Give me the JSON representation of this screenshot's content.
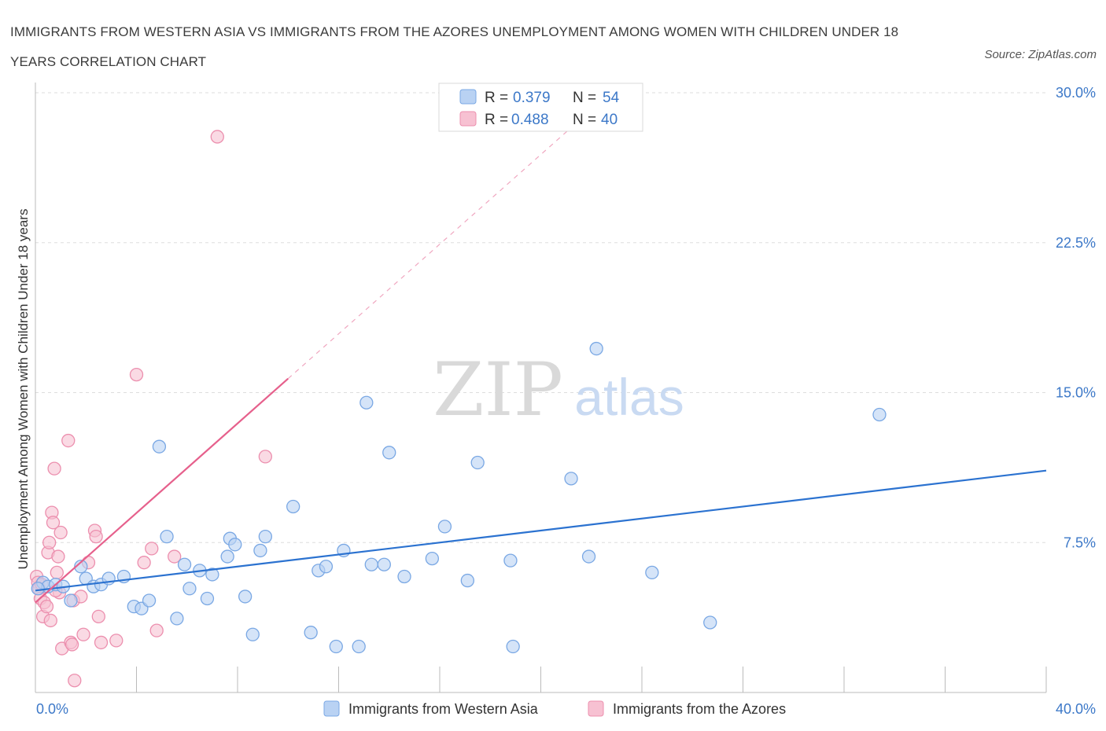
{
  "title": "IMMIGRANTS FROM WESTERN ASIA VS IMMIGRANTS FROM THE AZORES UNEMPLOYMENT AMONG WOMEN WITH CHILDREN UNDER 18 YEARS CORRELATION CHART",
  "source": "Source: ZipAtlas.com",
  "watermark": {
    "zip": "ZIP",
    "atlas": "atlas"
  },
  "legend_top": [
    {
      "r_label": "R =",
      "r_value": "0.379",
      "n_label": "N =",
      "n_value": "54"
    },
    {
      "r_label": "R =",
      "r_value": "0.488",
      "n_label": "N =",
      "n_value": "40"
    }
  ],
  "legend_bottom": [
    "Immigrants from Western Asia",
    "Immigrants from the Azores"
  ],
  "colors": {
    "blue_fill": "#b9d2f3",
    "blue_stroke": "#7aa8e4",
    "blue_line": "#2b72d0",
    "pink_fill": "#f7c1d2",
    "pink_stroke": "#ec8fae",
    "pink_line": "#e6608c",
    "tick_text": "#3c78c8",
    "grid": "#dddddd"
  },
  "chart_data": {
    "type": "scatter",
    "title": "IMMIGRANTS FROM WESTERN ASIA VS IMMIGRANTS FROM THE AZORES UNEMPLOYMENT AMONG WOMEN WITH CHILDREN UNDER 18 YEARS CORRELATION CHART",
    "xlabel": "",
    "ylabel": "Unemployment Among Women with Children Under 18 years",
    "xlim": [
      0,
      40
    ],
    "ylim": [
      0,
      30
    ],
    "x_tick_labels": [
      "0.0%",
      "40.0%"
    ],
    "y_ticks": [
      7.5,
      15.0,
      22.5,
      30.0
    ],
    "y_tick_labels": [
      "7.5%",
      "15.0%",
      "22.5%",
      "30.0%"
    ],
    "grid": true,
    "legend_position": "top-center",
    "series": [
      {
        "name": "Immigrants from Western Asia",
        "r": 0.379,
        "n": 54,
        "trend": {
          "x": [
            0,
            40
          ],
          "y": [
            5.1,
            11.1
          ]
        },
        "points": [
          [
            0.3,
            5.5
          ],
          [
            0.5,
            5.3
          ],
          [
            0.8,
            5.4
          ],
          [
            1.1,
            5.3
          ],
          [
            1.4,
            4.6
          ],
          [
            1.8,
            6.3
          ],
          [
            2.0,
            5.7
          ],
          [
            2.3,
            5.3
          ],
          [
            2.6,
            5.4
          ],
          [
            2.9,
            5.7
          ],
          [
            3.5,
            5.8
          ],
          [
            3.9,
            4.3
          ],
          [
            4.2,
            4.2
          ],
          [
            4.5,
            4.6
          ],
          [
            4.9,
            12.3
          ],
          [
            5.2,
            7.8
          ],
          [
            5.6,
            3.7
          ],
          [
            5.9,
            6.4
          ],
          [
            6.1,
            5.2
          ],
          [
            6.5,
            6.1
          ],
          [
            6.8,
            4.7
          ],
          [
            7.0,
            5.9
          ],
          [
            7.6,
            6.8
          ],
          [
            7.7,
            7.7
          ],
          [
            7.9,
            7.4
          ],
          [
            8.3,
            4.8
          ],
          [
            8.6,
            2.9
          ],
          [
            8.9,
            7.1
          ],
          [
            9.1,
            7.8
          ],
          [
            10.2,
            9.3
          ],
          [
            10.9,
            3.0
          ],
          [
            11.2,
            6.1
          ],
          [
            11.5,
            6.3
          ],
          [
            11.9,
            2.3
          ],
          [
            12.2,
            7.1
          ],
          [
            12.8,
            2.3
          ],
          [
            13.1,
            14.5
          ],
          [
            13.3,
            6.4
          ],
          [
            13.8,
            6.4
          ],
          [
            14.0,
            12.0
          ],
          [
            14.6,
            5.8
          ],
          [
            15.7,
            6.7
          ],
          [
            16.2,
            8.3
          ],
          [
            17.1,
            5.6
          ],
          [
            17.5,
            11.5
          ],
          [
            18.8,
            6.6
          ],
          [
            18.9,
            2.3
          ],
          [
            21.2,
            10.7
          ],
          [
            21.9,
            6.8
          ],
          [
            22.2,
            17.2
          ],
          [
            24.4,
            6.0
          ],
          [
            26.7,
            3.5
          ],
          [
            33.4,
            13.9
          ],
          [
            0.1,
            5.2
          ]
        ]
      },
      {
        "name": "Immigrants from the Azores",
        "r": 0.488,
        "n": 40,
        "trend": {
          "x": [
            0,
            10.0
          ],
          "y": [
            4.5,
            15.7
          ]
        },
        "trend_dashed": {
          "x": [
            10.0,
            21.6
          ],
          "y": [
            15.7,
            28.7
          ]
        },
        "points": [
          [
            0.05,
            5.8
          ],
          [
            0.1,
            5.5
          ],
          [
            0.15,
            5.2
          ],
          [
            0.2,
            4.7
          ],
          [
            0.3,
            3.8
          ],
          [
            0.35,
            4.5
          ],
          [
            0.45,
            4.3
          ],
          [
            0.5,
            7.0
          ],
          [
            0.55,
            7.5
          ],
          [
            0.6,
            3.6
          ],
          [
            0.65,
            9.0
          ],
          [
            0.7,
            8.5
          ],
          [
            0.75,
            11.2
          ],
          [
            0.85,
            6.0
          ],
          [
            0.9,
            6.8
          ],
          [
            0.95,
            5.0
          ],
          [
            1.0,
            8.0
          ],
          [
            1.05,
            2.2
          ],
          [
            1.3,
            12.6
          ],
          [
            1.4,
            2.5
          ],
          [
            1.45,
            2.4
          ],
          [
            1.5,
            4.6
          ],
          [
            1.55,
            0.6
          ],
          [
            1.8,
            4.8
          ],
          [
            1.9,
            2.9
          ],
          [
            2.1,
            6.5
          ],
          [
            2.35,
            8.1
          ],
          [
            2.4,
            7.8
          ],
          [
            2.5,
            3.8
          ],
          [
            2.6,
            2.5
          ],
          [
            3.2,
            2.6
          ],
          [
            4.0,
            15.9
          ],
          [
            4.3,
            6.5
          ],
          [
            4.6,
            7.2
          ],
          [
            4.8,
            3.1
          ],
          [
            5.5,
            6.8
          ],
          [
            7.2,
            27.8
          ],
          [
            9.1,
            11.8
          ],
          [
            0.25,
            5.4
          ],
          [
            0.8,
            5.1
          ]
        ]
      }
    ]
  }
}
